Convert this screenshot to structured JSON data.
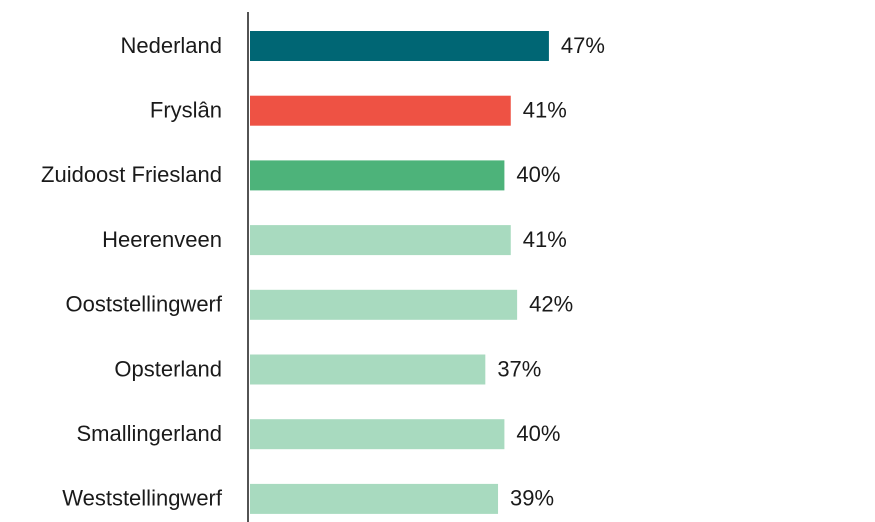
{
  "chart_data": {
    "type": "bar",
    "orientation": "horizontal",
    "categories": [
      "Nederland",
      "Fryslân",
      "Zuidoost Friesland",
      "Heerenveen",
      "Ooststellingwerf",
      "Opsterland",
      "Smallingerland",
      "Weststellingwerf"
    ],
    "values": [
      47,
      41,
      40,
      41,
      42,
      37,
      40,
      39
    ],
    "value_labels": [
      "47%",
      "41%",
      "40%",
      "41%",
      "42%",
      "37%",
      "40%",
      "39%"
    ],
    "colors": [
      "#006674",
      "#ee5244",
      "#4db37a",
      "#a8dabf",
      "#a8dabf",
      "#a8dabf",
      "#a8dabf",
      "#a8dabf"
    ]
  }
}
